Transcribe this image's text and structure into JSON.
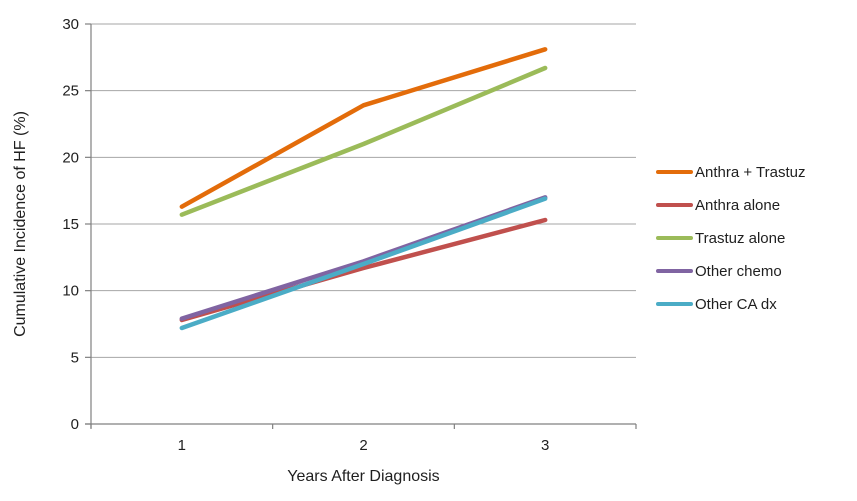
{
  "chart_data": {
    "type": "line",
    "categories": [
      "1",
      "2",
      "3"
    ],
    "series": [
      {
        "name": "Anthra + Trastuz",
        "color": "#E36C0A",
        "values": [
          16.3,
          23.9,
          28.1
        ]
      },
      {
        "name": "Anthra alone",
        "color": "#C0504D",
        "values": [
          7.8,
          11.7,
          15.3
        ]
      },
      {
        "name": "Trastuz alone",
        "color": "#9BBB59",
        "values": [
          15.7,
          21.0,
          26.7
        ]
      },
      {
        "name": "Other chemo",
        "color": "#8064A2",
        "values": [
          7.9,
          12.2,
          17.0
        ]
      },
      {
        "name": "Other CA dx",
        "color": "#4BACC6",
        "values": [
          7.2,
          12.0,
          16.9
        ]
      }
    ],
    "title": "",
    "xlabel": "Years After Diagnosis",
    "ylabel": "Cumulative Incidence of HF (%)",
    "ylim": [
      0,
      30
    ],
    "yticks": [
      0,
      5,
      10,
      15,
      20,
      25,
      30
    ],
    "grid": "horizontal-only",
    "legend_position": "right"
  },
  "colors": {
    "background": "#FFFFFF",
    "gridline": "#A6A6A6",
    "axis": "#808080",
    "text": "#1F1F1F"
  }
}
